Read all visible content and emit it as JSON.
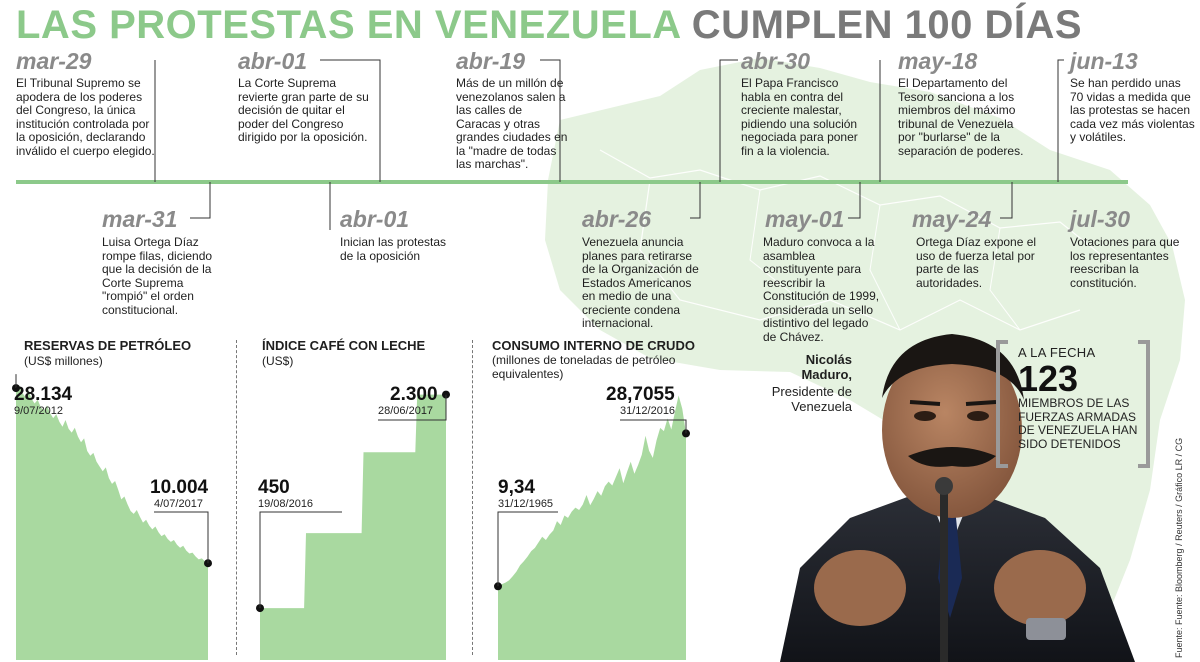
{
  "title": {
    "part1": "LAS PROTESTAS EN VENEZUELA",
    "part2": "CUMPLEN 100 DÍAS"
  },
  "timeline": {
    "top": [
      {
        "date": "mar-29",
        "text": "El Tribunal Supremo se apodera de los poderes del Congreso, la única institución controlada por la oposición, declarando inválido el cuerpo elegido."
      },
      {
        "date": "abr-01",
        "text": "La Corte Suprema revierte gran parte de su decisión de quitar el poder del Congreso dirigido por la oposición."
      },
      {
        "date": "abr-19",
        "text": "Más de un millón de venezolanos salen a las calles de Caracas y otras grandes ciudades en la \"madre de todas las marchas\"."
      },
      {
        "date": "abr-30",
        "text": "El Papa Francisco habla en contra del creciente malestar, pidiendo una solución negociada para poner fin a la violencia."
      },
      {
        "date": "may-18",
        "text": "El Departamento del Tesoro sanciona a los miembros del máximo tribunal de Venezuela por \"burlarse\" de la separación de poderes."
      },
      {
        "date": "jun-13",
        "text": "Se han perdido unas 70 vidas a medida que las protestas se hacen cada vez más violentas y volátiles."
      }
    ],
    "bottom": [
      {
        "date": "mar-31",
        "text": "Luisa Ortega Díaz rompe filas, diciendo que la decisión de la Corte Suprema \"rompió\" el orden constitucional."
      },
      {
        "date": "abr-01",
        "text": "Inician las protestas de la oposición"
      },
      {
        "date": "abr-26",
        "text": "Venezuela anuncia planes para retirarse de la Organización de Estados Americanos en medio de una creciente condena internacional."
      },
      {
        "date": "may-01",
        "text": "Maduro convoca a la asamblea constituyente para reescribir la Constitución de 1999, considerada un sello distintivo del legado de Chávez."
      },
      {
        "date": "may-24",
        "text": "Ortega Díaz expone el uso de fuerza letal por parte de las autoridades."
      },
      {
        "date": "jul-30",
        "text": "Votaciones para que los representantes reescriban la constitución."
      }
    ]
  },
  "chart_data": [
    {
      "type": "area",
      "title": "RESERVAS DE PETRÓLEO",
      "subtitle": "(US$ millones)",
      "color": "#a9d9a0",
      "start": {
        "value": "28.134",
        "date": "9/07/2012"
      },
      "end": {
        "value": "10.004",
        "date": "4/07/2017"
      },
      "y": [
        28.1,
        28.4,
        27.6,
        27.2,
        27.9,
        27.0,
        26.5,
        26.9,
        26.1,
        25.8,
        26.3,
        25.5,
        25.0,
        25.4,
        24.6,
        24.1,
        24.8,
        23.9,
        23.5,
        24.0,
        23.1,
        22.5,
        22.9,
        21.6,
        21.1,
        21.4,
        20.5,
        20.0,
        19.5,
        19.9,
        18.8,
        18.2,
        18.5,
        17.6,
        16.6,
        16.9,
        16.1,
        15.4,
        15.1,
        15.5,
        14.8,
        14.2,
        14.5,
        13.9,
        13.5,
        13.8,
        13.2,
        12.8,
        13.0,
        12.5,
        12.2,
        12.4,
        11.9,
        11.6,
        11.8,
        11.3,
        11.0,
        11.1,
        10.7,
        10.4,
        10.5,
        10.2,
        10.0
      ],
      "ylim": [
        0,
        31
      ]
    },
    {
      "type": "area",
      "title": "ÍNDICE CAFÉ CON LECHE",
      "subtitle": "(US$)",
      "color": "#a9d9a0",
      "start": {
        "value": "450",
        "date": "19/08/2016"
      },
      "end": {
        "value": "2.300",
        "date": "28/06/2017"
      },
      "y": [
        450,
        450,
        450,
        450,
        450,
        450,
        450,
        450,
        450,
        450,
        450,
        450,
        450,
        450,
        450,
        450,
        450,
        450,
        450,
        450,
        450,
        450,
        450,
        450,
        1100,
        1100,
        1100,
        1100,
        1100,
        1100,
        1100,
        1100,
        1100,
        1100,
        1100,
        1100,
        1100,
        1100,
        1100,
        1100,
        1100,
        1100,
        1100,
        1100,
        1100,
        1100,
        1100,
        1100,
        1100,
        1100,
        1100,
        1100,
        1100,
        1100,
        1800,
        1800,
        1800,
        1800,
        1800,
        1800,
        1800,
        1800,
        1800,
        1800,
        1800,
        1800,
        1800,
        1800,
        1800,
        1800,
        1800,
        1800,
        1800,
        1800,
        1800,
        1800,
        1800,
        1800,
        1800,
        1800,
        1800,
        1800,
        2300,
        2300,
        2300,
        2300,
        2300,
        2300,
        2300,
        2300,
        2300,
        2300,
        2300,
        2300,
        2300,
        2300,
        2300,
        2300
      ],
      "ylim": [
        0,
        2600
      ]
    },
    {
      "type": "area",
      "title": "CONSUMO INTERNO DE CRUDO",
      "subtitle": "(millones de toneladas de petróleo equivalentes)",
      "color": "#a9d9a0",
      "start": {
        "value": "9,34",
        "date": "31/12/1965"
      },
      "end": {
        "value": "28,7055",
        "date": "31/12/2016"
      },
      "y": [
        9.34,
        9.6,
        9.8,
        10.1,
        10.6,
        11.2,
        12.0,
        12.5,
        13.1,
        13.8,
        14.2,
        14.9,
        15.6,
        15.2,
        15.9,
        16.4,
        17.6,
        17.1,
        18.3,
        18.0,
        18.8,
        19.3,
        19.0,
        19.7,
        20.9,
        19.6,
        20.4,
        21.4,
        20.8,
        22.0,
        22.6,
        22.1,
        23.2,
        24.3,
        22.4,
        23.8,
        25.1,
        23.6,
        24.7,
        26.0,
        28.4,
        26.5,
        25.6,
        27.8,
        29.4,
        29.0,
        30.6,
        29.2,
        31.4,
        33.5,
        31.8,
        28.7
      ],
      "ylim": [
        0,
        38
      ]
    }
  ],
  "person": {
    "name_line1": "Nicolás",
    "name_line2": "Maduro,",
    "role_line1": "Presidente de",
    "role_line2": "Venezuela"
  },
  "fact": {
    "head": "A LA FECHA",
    "number": "123",
    "body": "MIEMBROS DE LAS FUERZAS ARMADAS DE VENEZUELA HAN SIDO DETENIDOS"
  },
  "credit": "Fuente: Fuente: Bloomberg / Reuters / Gráfico LR / CG"
}
